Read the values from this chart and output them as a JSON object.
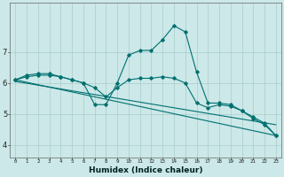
{
  "xlabel": "Humidex (Indice chaleur)",
  "background_color": "#cce8e8",
  "grid_color": "#aacccc",
  "line_color": "#007070",
  "xlim": [
    -0.5,
    23.5
  ],
  "ylim": [
    3.6,
    8.6
  ],
  "yticks": [
    4,
    5,
    6,
    7
  ],
  "xticks": [
    0,
    1,
    2,
    3,
    4,
    5,
    6,
    7,
    8,
    9,
    10,
    11,
    12,
    13,
    14,
    15,
    16,
    17,
    18,
    19,
    20,
    21,
    22,
    23
  ],
  "line1_x": [
    0,
    1,
    2,
    3,
    4,
    5,
    6,
    7,
    8,
    9,
    10,
    11,
    12,
    13,
    14,
    15,
    16,
    17,
    18,
    19,
    20,
    21,
    22,
    23
  ],
  "line1_y": [
    6.1,
    6.25,
    6.3,
    6.3,
    6.2,
    6.1,
    6.0,
    5.3,
    5.3,
    6.0,
    6.9,
    7.05,
    7.05,
    7.4,
    7.85,
    7.65,
    6.35,
    5.35,
    5.35,
    5.3,
    5.1,
    4.85,
    4.65,
    4.3
  ],
  "line2_x": [
    0,
    1,
    2,
    3,
    4,
    5,
    6,
    7,
    8,
    9,
    10,
    11,
    12,
    13,
    14,
    15,
    16,
    17,
    18,
    19,
    20,
    21,
    22,
    23
  ],
  "line2_y": [
    6.1,
    6.2,
    6.25,
    6.25,
    6.2,
    6.1,
    6.0,
    5.85,
    5.55,
    5.85,
    6.1,
    6.15,
    6.15,
    6.2,
    6.15,
    6.0,
    5.35,
    5.2,
    5.3,
    5.25,
    5.1,
    4.9,
    4.7,
    4.3
  ],
  "line3_x": [
    0,
    23
  ],
  "line3_y": [
    6.1,
    4.3
  ],
  "line4_x": [
    0,
    23
  ],
  "line4_y": [
    6.05,
    4.65
  ]
}
